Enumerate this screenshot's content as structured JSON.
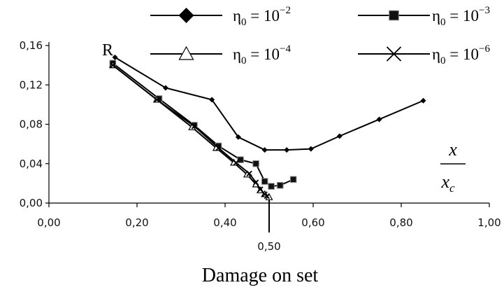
{
  "chart_data": {
    "type": "line",
    "title": "",
    "xlabel": "Damage on set",
    "ylabel": "R",
    "xlim": [
      0,
      1
    ],
    "ylim": [
      0,
      0.16
    ],
    "x_ticks": [
      "0,00",
      "0,20",
      "0,40",
      "0,60",
      "0,80",
      "1,00"
    ],
    "y_ticks": [
      "0,00",
      "0,04",
      "0,08",
      "0,12",
      "0,16"
    ],
    "x_tick_values": [
      0,
      0.2,
      0.4,
      0.6,
      0.8,
      1.0
    ],
    "y_tick_values": [
      0,
      0.04,
      0.08,
      0.12,
      0.16
    ],
    "annotation": "0,50",
    "annotation_x": 0.5,
    "ratio_label": {
      "num": "x",
      "den": "x",
      "den_sub": "c"
    },
    "grid": false,
    "legend_position": "top",
    "series": [
      {
        "name": "η0 = 10−2",
        "label_base": "η",
        "label_sub": "0",
        "label_rest": " = 10",
        "label_sup": "−2",
        "marker": "diamond",
        "x": [
          0.15,
          0.265,
          0.37,
          0.43,
          0.49,
          0.54,
          0.595,
          0.66,
          0.75,
          0.85
        ],
        "y": [
          0.148,
          0.117,
          0.105,
          0.067,
          0.054,
          0.054,
          0.055,
          0.068,
          0.085,
          0.104
        ]
      },
      {
        "name": "η0 = 10−3",
        "label_base": "η",
        "label_sub": "0",
        "label_rest": " = 10",
        "label_sup": "−3",
        "marker": "square",
        "x": [
          0.145,
          0.25,
          0.33,
          0.385,
          0.435,
          0.47,
          0.49,
          0.505,
          0.525,
          0.555
        ],
        "y": [
          0.142,
          0.106,
          0.079,
          0.058,
          0.044,
          0.04,
          0.022,
          0.017,
          0.018,
          0.024
        ]
      },
      {
        "name": "η0 = 10−4",
        "label_base": "η",
        "label_sub": "0",
        "label_rest": " = 10",
        "label_sup": "−4",
        "marker": "triangle",
        "x": [
          0.145,
          0.245,
          0.325,
          0.38,
          0.42,
          0.45,
          0.47,
          0.48,
          0.49,
          0.5
        ],
        "y": [
          0.14,
          0.105,
          0.077,
          0.056,
          0.041,
          0.029,
          0.019,
          0.013,
          0.009,
          0.006
        ]
      },
      {
        "name": "η0 = 10−6",
        "label_base": "η",
        "label_sub": "0",
        "label_rest": " = 10",
        "label_sup": "−6",
        "marker": "x",
        "x": [
          0.145,
          0.245,
          0.33,
          0.385,
          0.425,
          0.455,
          0.47,
          0.48,
          0.49,
          0.495
        ],
        "y": [
          0.14,
          0.105,
          0.078,
          0.056,
          0.041,
          0.03,
          0.021,
          0.014,
          0.009,
          0.007
        ]
      }
    ]
  }
}
